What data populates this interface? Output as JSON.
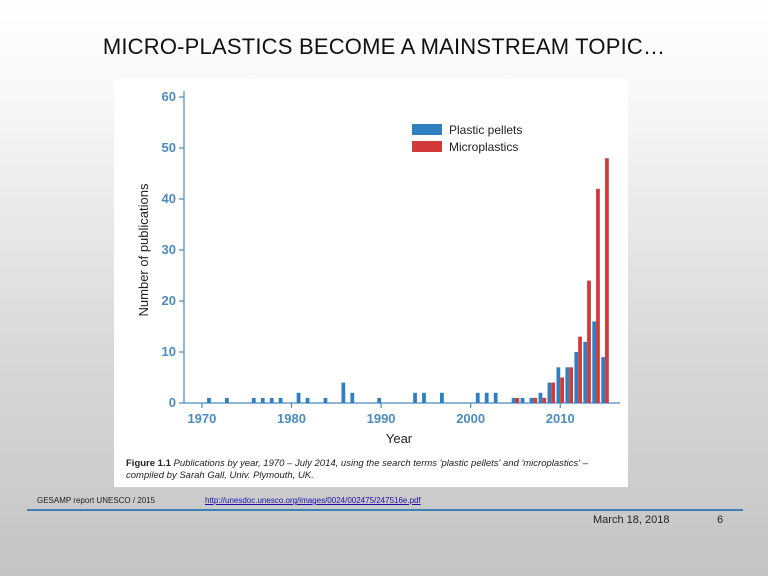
{
  "slide": {
    "title": "MICRO-PLASTICS BECOME A MAINSTREAM TOPIC…",
    "source": "GESAMP report UNESCO / 2015",
    "link": "http://unesdoc.unesco.org/images/0024/002475/247516e.pdf",
    "date": "March 18, 2018",
    "page_number": "6"
  },
  "figure": {
    "caption_label": "Figure 1.1",
    "caption_text": "Publications by year, 1970 – July 2014, using the search terms 'plastic pellets' and 'microplastics' – compiled by Sarah Gall, Univ. Plymouth, UK."
  },
  "colors": {
    "pellets": "#2f7fc1",
    "microplastics": "#d23a3a",
    "axis": "#4a8bc2"
  },
  "chart_data": {
    "type": "bar",
    "xlabel": "Year",
    "ylabel": "Number of publications",
    "xlim": [
      1968,
      2016
    ],
    "ylim": [
      0,
      60
    ],
    "xticks": [
      1970,
      1980,
      1990,
      2000,
      2010
    ],
    "yticks": [
      0,
      10,
      20,
      30,
      40,
      50,
      60
    ],
    "legend_position": "top-right",
    "series": [
      {
        "name": "Plastic pellets",
        "points": [
          [
            1971,
            1
          ],
          [
            1973,
            1
          ],
          [
            1976,
            1
          ],
          [
            1977,
            1
          ],
          [
            1978,
            1
          ],
          [
            1979,
            1
          ],
          [
            1981,
            2
          ],
          [
            1982,
            1
          ],
          [
            1984,
            1
          ],
          [
            1986,
            4
          ],
          [
            1987,
            2
          ],
          [
            1990,
            1
          ],
          [
            1994,
            2
          ],
          [
            1995,
            2
          ],
          [
            1997,
            2
          ],
          [
            2001,
            2
          ],
          [
            2002,
            2
          ],
          [
            2003,
            2
          ],
          [
            2005,
            1
          ],
          [
            2006,
            1
          ],
          [
            2007,
            1
          ],
          [
            2008,
            2
          ],
          [
            2009,
            4
          ],
          [
            2010,
            7
          ],
          [
            2011,
            7
          ],
          [
            2012,
            10
          ],
          [
            2013,
            12
          ],
          [
            2014,
            16
          ],
          [
            2015,
            9
          ]
        ]
      },
      {
        "name": "Microplastics",
        "points": [
          [
            2005,
            1
          ],
          [
            2007,
            1
          ],
          [
            2008,
            1
          ],
          [
            2009,
            4
          ],
          [
            2010,
            5
          ],
          [
            2011,
            7
          ],
          [
            2012,
            13
          ],
          [
            2013,
            24
          ],
          [
            2014,
            42
          ],
          [
            2015,
            48
          ]
        ]
      }
    ]
  }
}
